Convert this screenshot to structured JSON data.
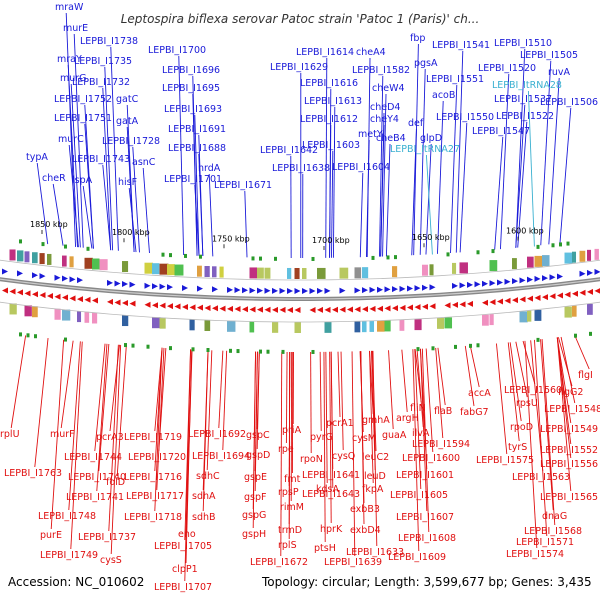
{
  "title": "Leptospira biflexa serovar Patoc strain 'Patoc 1 (Paris)' ch...",
  "footer": {
    "accession": "Accession: NC_010602",
    "topology": "Topology: circular; Length: 3,599,677 bp; Genes: 3,435"
  },
  "colors": {
    "forward": "#1a1ad8",
    "reverse": "#e01010",
    "rna": "#3ab0d0",
    "backbone": "#888888"
  },
  "kbp_ticks": [
    "1850 kbp",
    "1800 kbp",
    "1750 kbp",
    "1700 kbp",
    "1650 kbp",
    "1600 kbp"
  ],
  "forward_genes": [
    "mraW",
    "murE",
    "LEPBI_I1738",
    "mraY",
    "LEPBI_I1735",
    "murG",
    "LEPBI_I1732",
    "LEPBI_I1752",
    "gatC",
    "LEPBI_I1751",
    "gatA",
    "murC",
    "LEPBI_I1728",
    "typA",
    "LEPBI_I1743",
    "asnC",
    "cheR",
    "lspA",
    "hisF",
    "LEPBI_I1700",
    "LEPBI_I1696",
    "LEPBI_I1695",
    "LEPBI_I1693",
    "LEPBI_I1691",
    "LEPBI_I1688",
    "nrdA",
    "LEPBI_I1701",
    "LEPBI_I1671",
    "LEPBI_I1614",
    "cheA4",
    "LEPBI_I1629",
    "LEPBI_I1582",
    "LEPBI_I1616",
    "cheW4",
    "LEPBI_I1613",
    "cheD4",
    "LEPBI_I1612",
    "cheY4",
    "def",
    "metY",
    "LEPBI_I1642",
    "LEPBI_I1603",
    "cheB4",
    "glpD",
    "LEPBI_I1638",
    "LEPBI_I1604",
    "fbp",
    "LEPBI_I1541",
    "LEPBI_I1510",
    "pgsA",
    "LEPBI_I1505",
    "LEPBI_I1551",
    "LEPBI_I1520",
    "ruvA",
    "acoB",
    "LEPBI_I1537",
    "LEPBI_I1506",
    "LEPBI_I1550",
    "LEPBI_I1522",
    "LEPBI_I1547"
  ],
  "rna_genes": [
    "LEPBI_ItRNA28",
    "LEPBI_ItRNA27"
  ],
  "reverse_genes": [
    "rplU",
    "LEPBI_I1763",
    "murF",
    "LEPBI_I1744",
    "pcrA3",
    "LEPBI_I1740",
    "LEPBI_I1741",
    "LEPBI_I1748",
    "purE",
    "LEPBI_I1737",
    "LEPBI_I1749",
    "LEPBI_I1719",
    "LEPBI_I1720",
    "LEPBI_I1716",
    "folD",
    "LEPBI_I1717",
    "LEPBI_I1718",
    "cysS",
    "eno",
    "LEPBI_I1705",
    "clpP1",
    "LEPBI_I1707",
    "LEPBI_I1692",
    "LEPBI_I1694",
    "sdhC",
    "sdhA",
    "sdhB",
    "gspC",
    "gspD",
    "gspE",
    "gspF",
    "gspG",
    "gspH",
    "LEPBI_I1672",
    "priA",
    "rpe",
    "fmt",
    "rimM",
    "rpsP",
    "trmD",
    "rplS",
    "pyrG",
    "rpoN",
    "LEPBI_I1641",
    "LEPBI_I1643",
    "kdsA",
    "hprK",
    "ptsH",
    "pcrA1",
    "cysQ",
    "cysM",
    "leuC2",
    "leuD",
    "fkpA",
    "exbB3",
    "exbD4",
    "LEPBI_I1633",
    "LEPBI_I1639",
    "gmhA",
    "argH",
    "guaA",
    "fliN",
    "ilvA",
    "flaB",
    "LEPBI_I1594",
    "LEPBI_I1600",
    "LEPBI_I1601",
    "LEPBI_I1605",
    "LEPBI_I1607",
    "LEPBI_I1608",
    "LEPBI_I1609",
    "accA",
    "fabG7",
    "rpsU",
    "LEPBI_I1560",
    "LEPBI_I1548",
    "flgG2",
    "flgI",
    "LEPBI_I1549",
    "rpoD",
    "LEPBI_I1552",
    "tyrS",
    "LEPBI_I1575",
    "LEPBI_I1556",
    "LEPBI_I1563",
    "LEPBI_I1565",
    "dnaG",
    "LEPBI_I1568",
    "LEPBI_I1571",
    "LEPBI_I1574"
  ]
}
